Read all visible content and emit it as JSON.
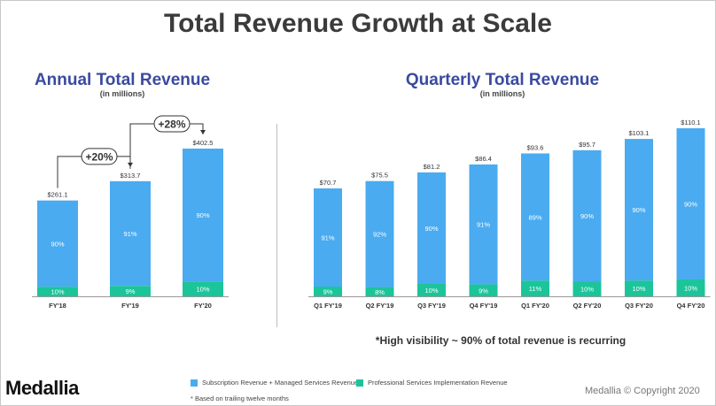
{
  "page": {
    "title": "Total Revenue Growth at Scale",
    "note": "*High visibility ~ 90% of total revenue is recurring",
    "footnote": "* Based on trailing twelve months",
    "logo": "Medallia",
    "copyright": "Medallia © Copyright 2020"
  },
  "colors": {
    "subscription": "#4aabf0",
    "professional": "#1cc49a",
    "title_blue": "#3a4aa0"
  },
  "legend": [
    {
      "label": "Subscription Revenue + Managed Services Revenue",
      "color": "#4aabf0"
    },
    {
      "label": "Professional Services Implementation Revenue",
      "color": "#1cc49a"
    }
  ],
  "chart_data": [
    {
      "type": "bar",
      "stacked": true,
      "title": "Annual Total Revenue",
      "subtitle": "(in millions)",
      "categories": [
        "FY'18",
        "FY'19",
        "FY'20"
      ],
      "totals": [
        261.1,
        313.7,
        402.5
      ],
      "total_labels": [
        "$261.1",
        "$313.7",
        "$402.5"
      ],
      "series": [
        {
          "name": "Professional Services Implementation Revenue",
          "share_labels": [
            "10%",
            "9%",
            "10%"
          ],
          "shares": [
            10,
            9,
            10
          ]
        },
        {
          "name": "Subscription Revenue + Managed Services Revenue",
          "share_labels": [
            "90%",
            "91%",
            "90%"
          ],
          "shares": [
            90,
            91,
            90
          ]
        }
      ],
      "growth_annotations": [
        {
          "label": "+20%",
          "from": "FY'18",
          "to": "FY'19"
        },
        {
          "label": "+28%",
          "from": "FY'19",
          "to": "FY'20"
        }
      ],
      "ylim": [
        0,
        402.5
      ]
    },
    {
      "type": "bar",
      "stacked": true,
      "title": "Quarterly Total Revenue",
      "subtitle": "(in millions)",
      "categories": [
        "Q1 FY'19",
        "Q2 FY'19",
        "Q3 FY'19",
        "Q4 FY'19",
        "Q1 FY'20",
        "Q2 FY'20",
        "Q3 FY'20",
        "Q4 FY'20"
      ],
      "totals": [
        70.7,
        75.5,
        81.2,
        86.4,
        93.6,
        95.7,
        103.1,
        110.1
      ],
      "total_labels": [
        "$70.7",
        "$75.5",
        "$81.2",
        "$86.4",
        "$93.6",
        "$95.7",
        "$103.1",
        "$110.1"
      ],
      "series": [
        {
          "name": "Professional Services Implementation Revenue",
          "share_labels": [
            "9%",
            "8%",
            "10%",
            "9%",
            "11%",
            "10%",
            "10%",
            "10%"
          ],
          "shares": [
            9,
            8,
            10,
            9,
            11,
            10,
            10,
            10
          ]
        },
        {
          "name": "Subscription Revenue + Managed Services Revenue",
          "share_labels": [
            "91%",
            "92%",
            "90%",
            "91%",
            "89%",
            "90%",
            "90%",
            "90%"
          ],
          "shares": [
            91,
            92,
            90,
            91,
            89,
            90,
            90,
            90
          ]
        }
      ],
      "ylim": [
        0,
        110.1
      ]
    }
  ]
}
